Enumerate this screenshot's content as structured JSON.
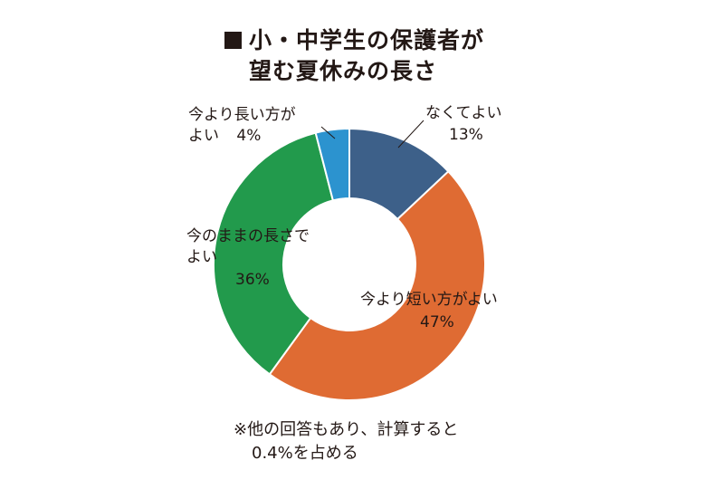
{
  "title": {
    "line1": "小・中学生の保護者が",
    "line2": "望む夏休みの長さ"
  },
  "chart_data": {
    "type": "pie",
    "variant": "donut",
    "start": "12 o'clock, clockwise",
    "series": [
      {
        "label": "なくてよい",
        "value": 13,
        "value_label": "13%",
        "color": "#3D6089"
      },
      {
        "label": "今より短い方がよい",
        "value": 47,
        "value_label": "47%",
        "color": "#DF6B33"
      },
      {
        "label": "今のままの長さでよい",
        "value": 36,
        "value_label": "36%",
        "color": "#229A4C"
      },
      {
        "label": "今より長い方がよい",
        "value": 4,
        "value_label": "4%",
        "color": "#2C93CF"
      }
    ]
  },
  "labels": {
    "none_line1": "なくてよい",
    "none_pct": "13%",
    "shorter_line1": "今より短い方がよい",
    "shorter_pct": "47%",
    "same_line1": "今のままの長さで",
    "same_line2": "よい",
    "same_pct": "36%",
    "longer_line1": "今より長い方が",
    "longer_line2": "よい",
    "longer_pct": "4%"
  },
  "note": {
    "line1": "※他の回答もあり、計算すると",
    "line2": "0.4%を占める"
  }
}
